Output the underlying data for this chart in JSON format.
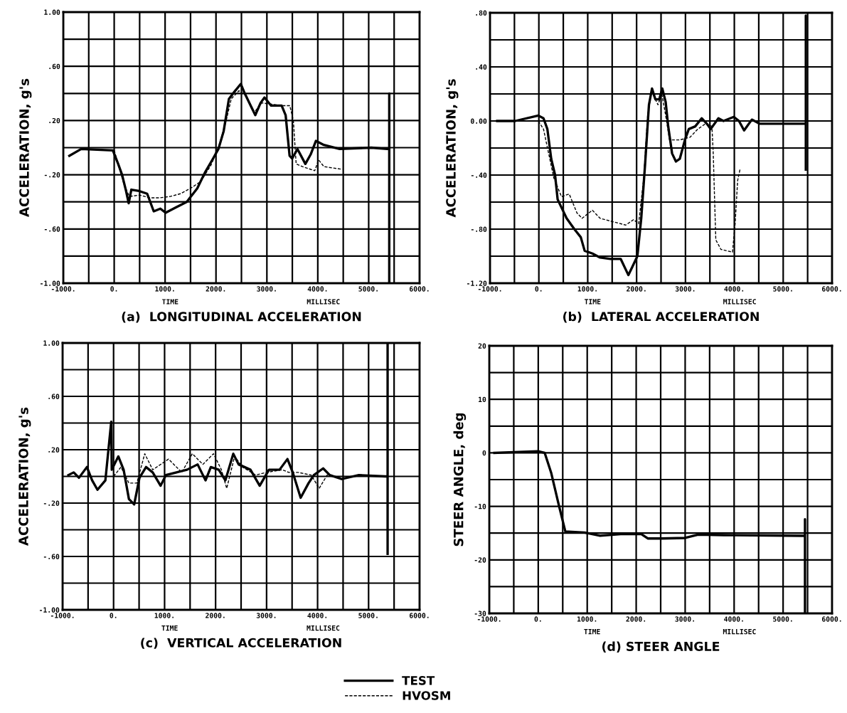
{
  "chart_data": [
    {
      "type": "line",
      "title": "(a)  LONGITUDINAL ACCELERATION",
      "ylabel": "ACCELERATION, g's",
      "annotations": [
        "TIME",
        "MILLISEC"
      ],
      "grid": true,
      "legend": "bottom",
      "xlim": [
        -1000,
        6000
      ],
      "xticks": [
        {
          "value": -1000,
          "label": "-1000."
        },
        {
          "value": -500,
          "label": null
        },
        {
          "value": 0,
          "label": "0."
        },
        {
          "value": 500,
          "label": null
        },
        {
          "value": 1000,
          "label": "1000."
        },
        {
          "value": 1500,
          "label": null
        },
        {
          "value": 2000,
          "label": "2000."
        },
        {
          "value": 2500,
          "label": null
        },
        {
          "value": 3000,
          "label": "3000."
        },
        {
          "value": 3500,
          "label": null
        },
        {
          "value": 4000,
          "label": "4000."
        },
        {
          "value": 4500,
          "label": null
        },
        {
          "value": 5000,
          "label": "5000."
        },
        {
          "value": 5500,
          "label": null
        },
        {
          "value": 6000,
          "label": "6000."
        }
      ],
      "ylim": [
        -1.0,
        1.0
      ],
      "yticks": [
        {
          "value": -1.0,
          "label": "-1.00"
        },
        {
          "value": -0.8,
          "label": null
        },
        {
          "value": -0.6,
          "label": "-.60"
        },
        {
          "value": -0.4,
          "label": null
        },
        {
          "value": -0.2,
          "label": "-.20"
        },
        {
          "value": 0,
          "label": null
        },
        {
          "value": 0.2,
          "label": ".20"
        },
        {
          "value": 0.4,
          "label": null
        },
        {
          "value": 0.6,
          "label": ".60"
        },
        {
          "value": 0.8,
          "label": null
        },
        {
          "value": 1.0,
          "label": "1.00"
        }
      ],
      "series": [
        {
          "name": "TEST",
          "color": "#000000",
          "line_style": "solid",
          "x": [
            -881,
            -648,
            -26,
            78,
            155,
            233,
            285,
            337,
            492,
            648,
            777,
            907,
            1010,
            1218,
            1425,
            1632,
            1788,
            1943,
            2047,
            2150,
            2254,
            2357,
            2487,
            2565,
            2668,
            2772,
            2876,
            2953,
            3083,
            3290,
            3368,
            3446,
            3497,
            3601,
            3756,
            3860,
            3964,
            4119,
            4430,
            5052,
            5363,
            5404,
            5404,
            5404
          ],
          "values": [
            -0.06,
            -0.01,
            -0.02,
            -0.12,
            -0.2,
            -0.32,
            -0.41,
            -0.31,
            -0.32,
            -0.34,
            -0.47,
            -0.45,
            -0.48,
            -0.44,
            -0.4,
            -0.3,
            -0.18,
            -0.08,
            -0.01,
            0.12,
            0.36,
            0.41,
            0.47,
            0.4,
            0.32,
            0.24,
            0.33,
            0.37,
            0.31,
            0.31,
            0.24,
            -0.06,
            -0.08,
            -0.01,
            -0.12,
            -0.05,
            0.05,
            0.02,
            -0.01,
            0.0,
            -0.01,
            -0.01,
            0.4,
            -1.0
          ]
        },
        {
          "name": "HVOSM",
          "color": "#000000",
          "line_style": "dashed",
          "x": [
            0,
            100,
            200,
            300,
            500,
            700,
            900,
            1100,
            1300,
            1500,
            1700,
            1900,
            2050,
            2200,
            2300,
            2450,
            2600,
            2750,
            2900,
            3100,
            3300,
            3450,
            3520,
            3575,
            3700,
            3860,
            3940,
            4016,
            4120,
            4480
          ],
          "values": [
            -0.02,
            -0.15,
            -0.28,
            -0.36,
            -0.35,
            -0.37,
            -0.37,
            -0.36,
            -0.34,
            -0.3,
            -0.25,
            -0.13,
            0.0,
            0.2,
            0.36,
            0.42,
            0.38,
            0.26,
            0.33,
            0.32,
            0.31,
            0.31,
            0.2,
            -0.12,
            -0.14,
            -0.16,
            -0.17,
            -0.09,
            -0.14,
            -0.16
          ]
        }
      ]
    },
    {
      "type": "line",
      "title": "(b)  LATERAL ACCELERATION",
      "ylabel": "ACCELERATION, g's",
      "annotations": [
        "TIME",
        "MILLISEC"
      ],
      "grid": true,
      "xlim": [
        -1000,
        6000
      ],
      "xticks": [
        {
          "value": -1000,
          "label": "-1000."
        },
        {
          "value": -500,
          "label": null
        },
        {
          "value": 0,
          "label": "0."
        },
        {
          "value": 500,
          "label": null
        },
        {
          "value": 1000,
          "label": "1000."
        },
        {
          "value": 1500,
          "label": null
        },
        {
          "value": 2000,
          "label": "2000."
        },
        {
          "value": 2500,
          "label": null
        },
        {
          "value": 3000,
          "label": "3000."
        },
        {
          "value": 3500,
          "label": null
        },
        {
          "value": 4000,
          "label": "4000."
        },
        {
          "value": 4500,
          "label": null
        },
        {
          "value": 5000,
          "label": "5000."
        },
        {
          "value": 5500,
          "label": null
        },
        {
          "value": 6000,
          "label": "6000."
        }
      ],
      "ylim": [
        -1.2,
        0.8
      ],
      "yticks": [
        {
          "value": -1.2,
          "label": "-1.20"
        },
        {
          "value": -1.0,
          "label": null
        },
        {
          "value": -0.8,
          "label": "-.80"
        },
        {
          "value": -0.6,
          "label": null
        },
        {
          "value": -0.4,
          "label": "-.40"
        },
        {
          "value": -0.2,
          "label": null
        },
        {
          "value": 0,
          "label": "0.00"
        },
        {
          "value": 0.2,
          "label": null
        },
        {
          "value": 0.4,
          "label": ".40"
        },
        {
          "value": 0.6,
          "label": null
        },
        {
          "value": 0.8,
          "label": ".80"
        }
      ],
      "series": [
        {
          "name": "TEST",
          "color": "#000000",
          "line_style": "solid",
          "x": [
            -853,
            -484,
            -10,
            95,
            174,
            253,
            332,
            384,
            463,
            568,
            726,
            858,
            937,
            1095,
            1253,
            1463,
            1674,
            1832,
            1911,
            2016,
            2095,
            2174,
            2253,
            2316,
            2384,
            2463,
            2526,
            2595,
            2647,
            2726,
            2805,
            2884,
            2989,
            3068,
            3200,
            3332,
            3437,
            3516,
            3674,
            3779,
            3989,
            4095,
            4200,
            4358,
            4516,
            5042,
            5411,
            5463,
            5463,
            5463
          ],
          "values": [
            0.0,
            0.0,
            0.04,
            0.02,
            -0.06,
            -0.28,
            -0.4,
            -0.58,
            -0.64,
            -0.72,
            -0.8,
            -0.86,
            -0.96,
            -0.98,
            -1.01,
            -1.02,
            -1.02,
            -1.14,
            -1.08,
            -1.0,
            -0.72,
            -0.32,
            0.12,
            0.24,
            0.16,
            0.16,
            0.24,
            0.14,
            -0.04,
            -0.24,
            -0.3,
            -0.28,
            -0.14,
            -0.06,
            -0.04,
            0.02,
            -0.02,
            -0.06,
            0.02,
            0.0,
            0.03,
            0.0,
            -0.07,
            0.01,
            -0.02,
            -0.02,
            -0.02,
            -0.02,
            0.78,
            -0.36
          ]
        },
        {
          "name": "HVOSM",
          "color": "#000000",
          "line_style": "dashed",
          "x": [
            -10,
            95,
            200,
            305,
            463,
            621,
            779,
            884,
            1095,
            1253,
            1463,
            1779,
            1937,
            2042,
            2147,
            2226,
            2305,
            2437,
            2516,
            2595,
            2674,
            2884,
            3095,
            3253,
            3411,
            3542,
            3568,
            3621,
            3726,
            3963,
            4016,
            4068,
            4121
          ],
          "values": [
            0.0,
            -0.06,
            -0.24,
            -0.42,
            -0.56,
            -0.54,
            -0.68,
            -0.72,
            -0.66,
            -0.72,
            -0.74,
            -0.77,
            -0.73,
            -0.76,
            -0.42,
            0.04,
            0.22,
            0.12,
            0.2,
            0.04,
            -0.14,
            -0.14,
            -0.12,
            -0.06,
            -0.02,
            -0.04,
            -0.24,
            -0.88,
            -0.95,
            -0.97,
            -0.76,
            -0.44,
            -0.35
          ]
        }
      ]
    },
    {
      "type": "line",
      "title": "(c)  VERTICAL ACCELERATION",
      "ylabel": "ACCELERATION, g's",
      "annotations": [
        "TIME",
        "MILLISEC"
      ],
      "grid": true,
      "xlim": [
        -1000,
        6000
      ],
      "xticks": [
        {
          "value": -1000,
          "label": "-1000."
        },
        {
          "value": -500,
          "label": null
        },
        {
          "value": 0,
          "label": "0."
        },
        {
          "value": 500,
          "label": null
        },
        {
          "value": 1000,
          "label": "1000."
        },
        {
          "value": 1500,
          "label": null
        },
        {
          "value": 2000,
          "label": "2000."
        },
        {
          "value": 2500,
          "label": null
        },
        {
          "value": 3000,
          "label": "3000."
        },
        {
          "value": 3500,
          "label": null
        },
        {
          "value": 4000,
          "label": "4000."
        },
        {
          "value": 4500,
          "label": null
        },
        {
          "value": 5000,
          "label": "5000."
        },
        {
          "value": 5500,
          "label": null
        },
        {
          "value": 6000,
          "label": "6000."
        }
      ],
      "ylim": [
        -1.0,
        1.0
      ],
      "yticks": [
        {
          "value": -1.0,
          "label": "-1.00"
        },
        {
          "value": -0.8,
          "label": null
        },
        {
          "value": -0.6,
          "label": "-.60"
        },
        {
          "value": -0.4,
          "label": null
        },
        {
          "value": -0.2,
          "label": "-.20"
        },
        {
          "value": 0,
          "label": null
        },
        {
          "value": 0.2,
          "label": ".20"
        },
        {
          "value": 0.4,
          "label": null
        },
        {
          "value": 0.6,
          "label": ".60"
        },
        {
          "value": 0.8,
          "label": null
        },
        {
          "value": 1.0,
          "label": "1.00"
        }
      ],
      "series": [
        {
          "name": "TEST",
          "color": "#000000",
          "line_style": "solid",
          "x": [
            -886,
            -782,
            -679,
            -523,
            -420,
            -316,
            -161,
            -46,
            -36,
            93,
            197,
            301,
            404,
            508,
            637,
            767,
            922,
            1026,
            1233,
            1440,
            1648,
            1803,
            1907,
            2062,
            2192,
            2347,
            2451,
            2684,
            2865,
            3047,
            3254,
            3409,
            3513,
            3668,
            3824,
            3927,
            4109,
            4238,
            4472,
            4808,
            5326,
            5373,
            5373,
            5373
          ],
          "values": [
            0.01,
            0.03,
            -0.01,
            0.07,
            -0.03,
            -0.1,
            -0.03,
            0.41,
            0.05,
            0.15,
            0.05,
            -0.17,
            -0.21,
            -0.01,
            0.07,
            0.03,
            -0.07,
            0.01,
            0.03,
            0.05,
            0.09,
            -0.03,
            0.07,
            0.05,
            -0.03,
            0.17,
            0.09,
            0.05,
            -0.07,
            0.05,
            0.05,
            0.13,
            0.03,
            -0.16,
            -0.05,
            0.01,
            0.06,
            0.01,
            -0.02,
            0.01,
            0.0,
            0.0,
            1.0,
            -0.58
          ]
        },
        {
          "name": "HVOSM",
          "color": "#000000",
          "line_style": "dashed",
          "x": [
            0,
            145,
            301,
            456,
            611,
            767,
            1078,
            1337,
            1544,
            1751,
            1959,
            2114,
            2218,
            2373,
            2528,
            2788,
            2995,
            3306,
            3435,
            3617,
            3876,
            4031,
            4187,
            4446
          ],
          "values": [
            0.0,
            0.07,
            -0.05,
            -0.05,
            0.17,
            0.05,
            0.13,
            0.03,
            0.17,
            0.09,
            0.17,
            0.05,
            -0.09,
            0.15,
            0.07,
            0.01,
            0.03,
            0.05,
            0.03,
            0.03,
            0.01,
            -0.09,
            0.01,
            -0.01
          ]
        }
      ]
    },
    {
      "type": "line",
      "title": "(d) STEER ANGLE",
      "ylabel": "STEER ANGLE, deg",
      "annotations": [
        "TIME",
        "MILLISEC"
      ],
      "grid": true,
      "xlim": [
        -1000,
        6000
      ],
      "xticks": [
        {
          "value": -1000,
          "label": "-1000."
        },
        {
          "value": -500,
          "label": null
        },
        {
          "value": 0,
          "label": "0."
        },
        {
          "value": 500,
          "label": null
        },
        {
          "value": 1000,
          "label": "1000."
        },
        {
          "value": 1500,
          "label": null
        },
        {
          "value": 2000,
          "label": "2000."
        },
        {
          "value": 2500,
          "label": null
        },
        {
          "value": 3000,
          "label": "3000."
        },
        {
          "value": 3500,
          "label": null
        },
        {
          "value": 4000,
          "label": "4000."
        },
        {
          "value": 4500,
          "label": null
        },
        {
          "value": 5000,
          "label": "5000."
        },
        {
          "value": 5500,
          "label": null
        },
        {
          "value": 6000,
          "label": "6000."
        }
      ],
      "ylim": [
        -30,
        20
      ],
      "yticks": [
        -30,
        {
          "value": -25,
          "label": null
        },
        -20,
        {
          "value": -15,
          "label": null
        },
        -10,
        {
          "value": -5,
          "label": null
        },
        0,
        {
          "value": 5,
          "label": null
        },
        10,
        {
          "value": 15,
          "label": null
        },
        20
      ],
      "series": [
        {
          "name": "TEST",
          "color": "#000000",
          "line_style": "solid",
          "x": [
            -895,
            0,
            132,
            263,
            421,
            553,
            947,
            1263,
            1684,
            2105,
            2237,
            2526,
            3000,
            3263,
            4000,
            5421,
            5447,
            5447,
            5447
          ],
          "values": [
            0.0,
            0.3,
            0.0,
            -3.7,
            -9.8,
            -14.7,
            -14.9,
            -15.5,
            -15.2,
            -15.2,
            -16.0,
            -16.0,
            -15.9,
            -15.3,
            -15.4,
            -15.5,
            -15.5,
            -12.4,
            -30
          ]
        }
      ]
    }
  ]
}
